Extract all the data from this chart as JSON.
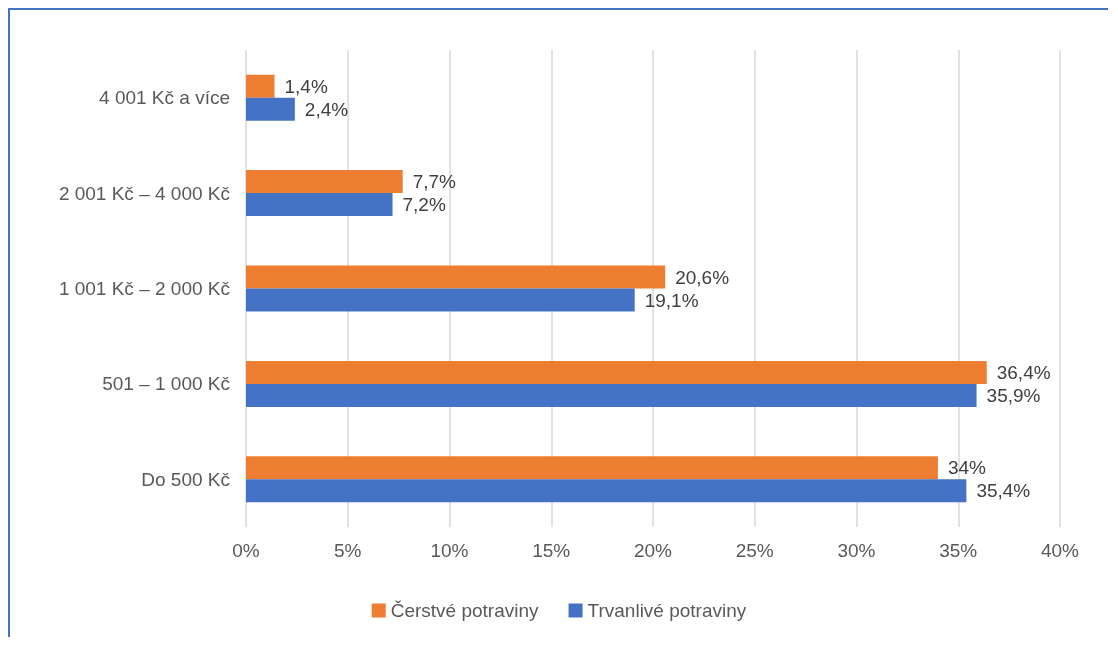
{
  "chart_data": {
    "type": "bar",
    "orientation": "horizontal",
    "categories": [
      "4 001 Kč a více",
      "2 001 Kč – 4 000 Kč",
      "1 001 Kč – 2 000 Kč",
      "501 – 1 000 Kč",
      "Do 500 Kč"
    ],
    "series": [
      {
        "name": "Čerstvé potraviny",
        "color": "#ed7d31",
        "values": [
          1.4,
          7.7,
          20.6,
          36.4,
          34
        ],
        "value_labels": [
          "1,4%",
          "7,7%",
          "20,6%",
          "36,4%",
          "34%"
        ]
      },
      {
        "name": "Trvanlivé potraviny",
        "color": "#4472c4",
        "values": [
          2.4,
          7.2,
          19.1,
          35.9,
          35.4
        ],
        "value_labels": [
          "2,4%",
          "7,2%",
          "19,1%",
          "35,9%",
          "35,4%"
        ]
      }
    ],
    "xlim": [
      0,
      40
    ],
    "xticks": [
      {
        "value": 0,
        "label": "0%"
      },
      {
        "value": 5,
        "label": "5%"
      },
      {
        "value": 10,
        "label": "10%"
      },
      {
        "value": 15,
        "label": "15%"
      },
      {
        "value": 20,
        "label": "20%"
      },
      {
        "value": 25,
        "label": "25%"
      },
      {
        "value": 30,
        "label": "30%"
      },
      {
        "value": 35,
        "label": "35%"
      },
      {
        "value": 40,
        "label": "40%"
      }
    ],
    "grid": "x",
    "legend": "bottom"
  }
}
